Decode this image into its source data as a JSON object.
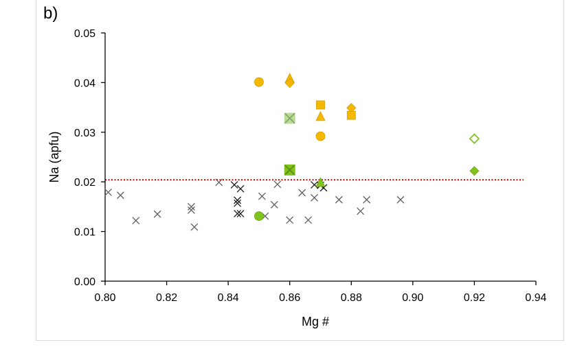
{
  "panel_label": "b)",
  "colors": {
    "orange": "#f5b800",
    "orange_stroke": "#e0a200",
    "green": "#7fc31c",
    "green_light": "#b9dc95",
    "green_dark": "#4a9a1e",
    "cross_dark": "#1a1a1a",
    "cross_grey": "#606060",
    "threshold": "#c00000",
    "axis": "#000000"
  },
  "chart_data": {
    "type": "scatter",
    "title": "",
    "xlabel": "Mg #",
    "ylabel": "Na (apfu)",
    "xlim": [
      0.8,
      0.94
    ],
    "ylim": [
      0.0,
      0.05
    ],
    "x_ticks": [
      "0.80",
      "0.82",
      "0.84",
      "0.86",
      "0.88",
      "0.90",
      "0.92",
      "0.94"
    ],
    "y_ticks": [
      "0.00",
      "0.01",
      "0.02",
      "0.03",
      "0.04",
      "0.05"
    ],
    "grid": false,
    "legend": "none",
    "threshold_line": {
      "y": 0.0204,
      "style": "dotted",
      "x_range": [
        0.8,
        0.936
      ]
    },
    "series": [
      {
        "marker": "circle-filled",
        "color": "orange",
        "points": [
          [
            0.85,
            0.0401
          ],
          [
            0.87,
            0.0292
          ]
        ]
      },
      {
        "marker": "triangle-filled",
        "color": "orange",
        "points": [
          [
            0.86,
            0.0408
          ],
          [
            0.87,
            0.0331
          ]
        ]
      },
      {
        "marker": "diamond-filled",
        "color": "orange",
        "points": [
          [
            0.86,
            0.0399
          ],
          [
            0.88,
            0.0349
          ]
        ]
      },
      {
        "marker": "square-filled",
        "color": "orange",
        "points": [
          [
            0.87,
            0.0355
          ],
          [
            0.88,
            0.0334
          ]
        ]
      },
      {
        "marker": "square-x",
        "color": "green_light",
        "points": [
          [
            0.86,
            0.0328
          ]
        ]
      },
      {
        "marker": "square-x",
        "color": "green",
        "points": [
          [
            0.86,
            0.0224
          ]
        ]
      },
      {
        "marker": "triangle-filled",
        "color": "green",
        "points": [
          [
            0.87,
            0.0198
          ]
        ]
      },
      {
        "marker": "circle-filled",
        "color": "green",
        "points": [
          [
            0.85,
            0.0131
          ]
        ]
      },
      {
        "marker": "diamond-open",
        "color": "green",
        "points": [
          [
            0.92,
            0.0287
          ]
        ]
      },
      {
        "marker": "diamond-filled",
        "color": "green",
        "points": [
          [
            0.92,
            0.0222
          ]
        ]
      },
      {
        "marker": "cross",
        "color": "cross_dark",
        "points": [
          [
            0.842,
            0.0194
          ],
          [
            0.843,
            0.0163
          ],
          [
            0.844,
            0.0186
          ],
          [
            0.843,
            0.0136
          ],
          [
            0.844,
            0.0136
          ],
          [
            0.868,
            0.0194
          ],
          [
            0.87,
            0.0193
          ],
          [
            0.871,
            0.0188
          ],
          [
            0.843,
            0.0157
          ]
        ]
      },
      {
        "marker": "cross",
        "color": "cross_grey",
        "points": [
          [
            0.801,
            0.0179
          ],
          [
            0.805,
            0.0173
          ],
          [
            0.81,
            0.0122
          ],
          [
            0.817,
            0.0135
          ],
          [
            0.828,
            0.015
          ],
          [
            0.828,
            0.0143
          ],
          [
            0.829,
            0.0109
          ],
          [
            0.837,
            0.0199
          ],
          [
            0.851,
            0.0171
          ],
          [
            0.852,
            0.0131
          ],
          [
            0.855,
            0.0154
          ],
          [
            0.856,
            0.0195
          ],
          [
            0.86,
            0.0123
          ],
          [
            0.864,
            0.0178
          ],
          [
            0.866,
            0.0123
          ],
          [
            0.868,
            0.0168
          ],
          [
            0.876,
            0.0164
          ],
          [
            0.883,
            0.0141
          ],
          [
            0.885,
            0.0164
          ],
          [
            0.896,
            0.0164
          ]
        ]
      }
    ]
  }
}
